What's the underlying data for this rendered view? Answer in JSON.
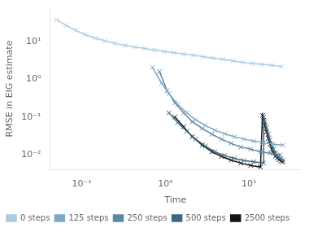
{
  "chart_data": {
    "type": "line",
    "xlabel": "Time",
    "ylabel": "RMSE in EIG estimate",
    "log": true,
    "xlim": [
      0.0416869383470335,
      41.6869383470335
    ],
    "ylim": [
      0.00398107170553497,
      79.4328234724281
    ],
    "xticks": [
      {
        "value": 0.1,
        "label": "10⁻¹"
      },
      {
        "value": 1,
        "label": "10⁰"
      },
      {
        "value": 10,
        "label": "10¹"
      }
    ],
    "yticks": [
      {
        "value": 0.01,
        "label": "10⁻²"
      },
      {
        "value": 0.1,
        "label": "10⁻¹"
      },
      {
        "value": 1,
        "label": "10⁰"
      },
      {
        "value": 10,
        "label": "10¹"
      }
    ],
    "grid": false,
    "legend": "lower left",
    "marker": "x",
    "line_style": "solid",
    "series": [
      {
        "name": "0 steps",
        "color": "#aacce0",
        "x": [
          0.05,
          0.065,
          0.085,
          0.11,
          0.145,
          0.19,
          0.25,
          0.33,
          0.43,
          0.57,
          0.74,
          0.97,
          1.27,
          1.66,
          2.17,
          2.84,
          3.72,
          4.87,
          6.38,
          8.35,
          10.93,
          14.31,
          18.73,
          24.51
        ],
        "values": [
          38.0,
          27.0,
          20.0,
          15.5,
          12.5,
          10.5,
          9.0,
          8.0,
          7.2,
          6.6,
          6.0,
          5.5,
          5.1,
          4.7,
          4.4,
          4.0,
          3.7,
          3.4,
          3.1,
          2.85,
          2.65,
          2.5,
          2.35,
          2.2
        ]
      },
      {
        "name": "125 steps",
        "color": "#7eaac4",
        "x": [
          0.7,
          0.9,
          1.1,
          1.4,
          1.8,
          2.3,
          3.0,
          3.9,
          5.1,
          6.7,
          8.7,
          11.4,
          14.9,
          19.5,
          25.5
        ],
        "values": [
          2.1,
          0.8,
          0.42,
          0.22,
          0.13,
          0.085,
          0.06,
          0.045,
          0.036,
          0.03,
          0.026,
          0.023,
          0.021,
          0.019,
          0.018
        ]
      },
      {
        "name": "250 steps",
        "color": "#5b8aa4",
        "x": [
          0.85,
          1.05,
          1.3,
          1.65,
          2.1,
          2.75,
          3.6,
          4.7,
          6.1,
          8.0,
          10.5,
          13.7,
          17.9,
          23.4
        ],
        "values": [
          1.6,
          0.5,
          0.24,
          0.13,
          0.075,
          0.05,
          0.035,
          0.026,
          0.02,
          0.016,
          0.014,
          0.012,
          0.011,
          0.01
        ]
      },
      {
        "name": "500 steps",
        "color": "#3d6880",
        "x": [
          1.1,
          1.4,
          1.8,
          2.3,
          3.0,
          3.9,
          5.1,
          6.7,
          8.7,
          11.4,
          14.9,
          15.0,
          15.5,
          16.2,
          17.0,
          17.8,
          18.7,
          19.7,
          20.7,
          21.8,
          22.9,
          24.1,
          25.3
        ],
        "values": [
          0.13,
          0.072,
          0.042,
          0.026,
          0.017,
          0.012,
          0.0095,
          0.008,
          0.007,
          0.0065,
          0.006,
          0.1,
          0.075,
          0.052,
          0.036,
          0.025,
          0.018,
          0.014,
          0.011,
          0.0095,
          0.0085,
          0.0078,
          0.0072
        ]
      },
      {
        "name": "2500 steps",
        "color": "#141414",
        "x": [
          1.3,
          1.65,
          2.1,
          2.75,
          3.6,
          4.7,
          6.1,
          8.0,
          10.5,
          13.7,
          14.5,
          15.0,
          15.5,
          16.2,
          17.0,
          17.8,
          18.7,
          19.7,
          20.7,
          21.8,
          22.9,
          24.1,
          25.3
        ],
        "values": [
          0.1,
          0.055,
          0.03,
          0.018,
          0.012,
          0.009,
          0.0072,
          0.006,
          0.0052,
          0.0047,
          0.11,
          0.082,
          0.058,
          0.04,
          0.027,
          0.019,
          0.014,
          0.011,
          0.0092,
          0.0082,
          0.0074,
          0.0068,
          0.0064
        ]
      }
    ]
  }
}
